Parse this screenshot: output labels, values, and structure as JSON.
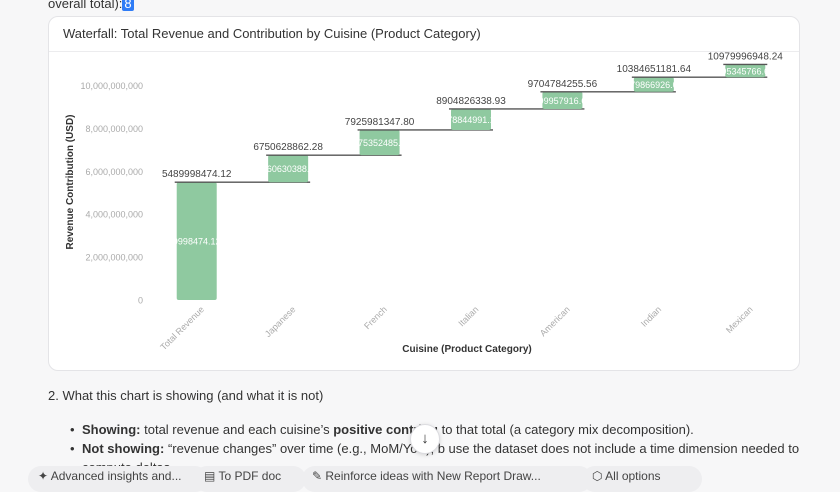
{
  "top_text": {
    "prefix": "overall total):",
    "highlight": "8"
  },
  "card": {
    "title": "Waterfall: Total Revenue and Contribution by Cuisine (Product Category)"
  },
  "chart_data": {
    "type": "bar",
    "subtype": "waterfall",
    "title": "Waterfall: Total Revenue and Contribution by Cuisine (Product Category)",
    "xlabel": "Cuisine (Product Category)",
    "ylabel": "Revenue Contribution (USD)",
    "ylim": [
      0,
      11000000000
    ],
    "yticks": [
      {
        "value": 0,
        "label": "0"
      },
      {
        "value": 2000000000,
        "label": "2,000,000,000"
      },
      {
        "value": 4000000000,
        "label": "4,000,000,000"
      },
      {
        "value": 6000000000,
        "label": "6,000,000,000"
      },
      {
        "value": 8000000000,
        "label": "8,000,000,000"
      },
      {
        "value": 10000000000,
        "label": "10,000,000,000"
      }
    ],
    "categories": [
      "Total Revenue",
      "Japanese",
      "French",
      "Italian",
      "American",
      "Indian",
      "Mexican"
    ],
    "bars": [
      {
        "category": "Total Revenue",
        "base": 0,
        "value": 5489998474.12,
        "inner_label": "5489998474.12000",
        "cum_label": "5489998474.12"
      },
      {
        "category": "Japanese",
        "base": 5489998474.12,
        "value": 1260630388,
        "inner_label": "1260630388.16",
        "cum_label": "6750628862.28"
      },
      {
        "category": "French",
        "base": 6750628862.28,
        "value": 1175352485.52,
        "inner_label": "1175352485.52",
        "cum_label": "7925981347.80"
      },
      {
        "category": "Italian",
        "base": 7925981347.8,
        "value": 978844991.13,
        "inner_label": "978844991.13",
        "cum_label": "8904826338.93"
      },
      {
        "category": "American",
        "base": 8904826338.93,
        "value": 799957916.63,
        "inner_label": "799957916.63",
        "cum_label": "9704784255.56"
      },
      {
        "category": "Indian",
        "base": 9704784255.56,
        "value": 679866926.08,
        "inner_label": "679866926.08",
        "cum_label": "10384651181.64"
      },
      {
        "category": "Mexican",
        "base": 10384651181.64,
        "value": 595345766.6,
        "inner_label": "595345766.60",
        "cum_label": "10979996948.24"
      }
    ],
    "grid": false,
    "legend": "none",
    "colors": {
      "bar": "#8fc9a0",
      "connector": "#555555",
      "inner_label": "#ffffff",
      "label": "#444444",
      "tick": "#aaaaaa"
    }
  },
  "section": {
    "heading": "2. What this chart is showing (and what it is not)"
  },
  "bullets": [
    {
      "bold": "Showing:",
      "text": " total revenue and each cuisine’s ",
      "bold2": "positive contribu",
      "text2": "    to that total (a category mix decomposition)."
    },
    {
      "bold": "Not showing:",
      "text": " “revenue changes” over time (e.g., MoM/YoY), b      use the dataset does not include a time dimension needed to compute deltas.",
      "bold2": "",
      "text2": ""
    }
  ],
  "scroll_button": {
    "icon": "arrow-down-icon",
    "glyph": "↓"
  },
  "bottom_pills": [
    {
      "label": "Advanced insights and...",
      "icon": "sparkle-icon"
    },
    {
      "label": "To PDF doc",
      "icon": "file-icon"
    },
    {
      "label": "Reinforce ideas with New Report Draw...",
      "icon": "pen-icon"
    },
    {
      "label": "All options",
      "icon": "cube-icon"
    }
  ]
}
